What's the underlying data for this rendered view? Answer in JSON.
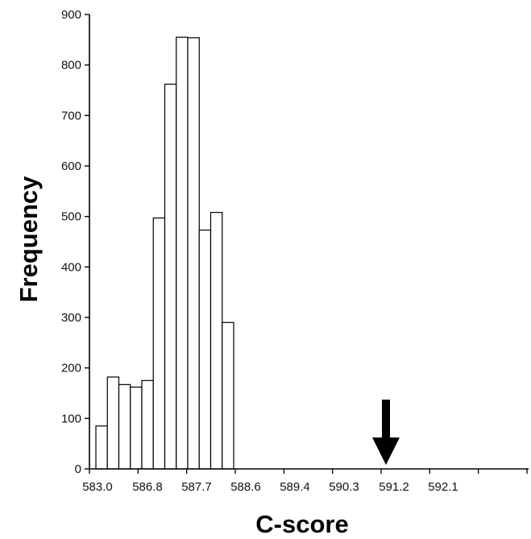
{
  "chart_data": {
    "type": "bar",
    "xlabel": "C-score",
    "ylabel": "Frequency",
    "ylim": [
      0,
      900
    ],
    "yticks": [
      0,
      100,
      200,
      300,
      400,
      500,
      600,
      700,
      800,
      900
    ],
    "xtick_labels": [
      "583.0",
      "586.8",
      "587.7",
      "588.6",
      "589.4",
      "590.3",
      "591.2",
      "592.1"
    ],
    "grid": false,
    "legend": "none",
    "bar_fill": "#ffffff",
    "bar_stroke": "#000000",
    "values": [
      85,
      182,
      167,
      162,
      175,
      497,
      762,
      855,
      854,
      473,
      508,
      290
    ],
    "annotation": {
      "type": "arrow-down",
      "at_tick": "591.2"
    }
  }
}
